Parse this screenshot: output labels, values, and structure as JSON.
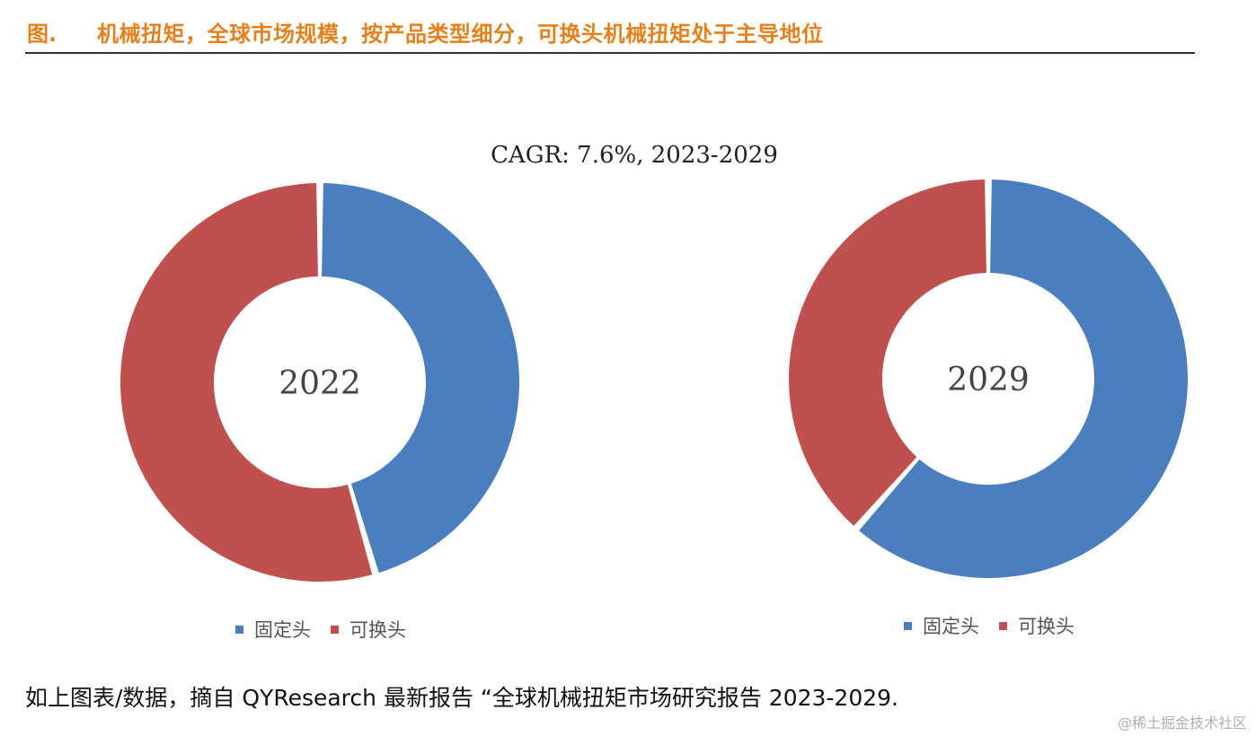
{
  "header": {
    "prefix": "图.",
    "title": "机械扭矩，全球市场规模，按产品类型细分，可换头机械扭矩处于主导地位"
  },
  "subtitle": "CAGR:   7.6%, 2023-2029",
  "colors": {
    "accent": "#e8801a",
    "fixed_head": "#4a7ebf",
    "replaceable_head": "#c0504d"
  },
  "chart_data": [
    {
      "type": "pie",
      "variant": "donut",
      "center_label": "2022",
      "categories": [
        "固定头",
        "可换头"
      ],
      "values": [
        45.5,
        54.5
      ],
      "legend": [
        "固定头",
        "可换头"
      ],
      "legend_position": "bottom"
    },
    {
      "type": "pie",
      "variant": "donut",
      "center_label": "2029",
      "categories": [
        "固定头",
        "可换头"
      ],
      "values": [
        61.5,
        38.5
      ],
      "legend": [
        "固定头",
        "可换头"
      ],
      "legend_position": "bottom"
    }
  ],
  "caption": "如上图表/数据，摘自 QYResearch 最新报告 “全球机械扭矩市场研究报告 2023-2029.",
  "watermark": "@稀土掘金技术社区"
}
